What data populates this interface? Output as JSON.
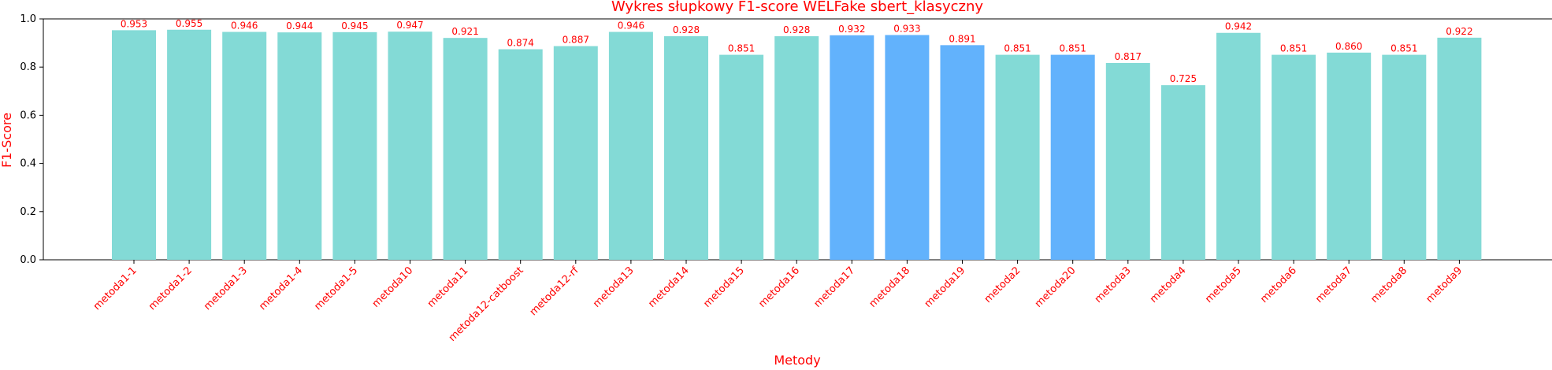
{
  "chart_data": {
    "type": "bar",
    "title": "Wykres słupkowy F1-score WELFake sbert_klasyczny",
    "xlabel": "Metody",
    "ylabel": "F1-Score",
    "ylim": [
      0,
      1.0
    ],
    "yticks": [
      "0.0",
      "0.2",
      "0.4",
      "0.6",
      "0.8",
      "1.0"
    ],
    "grid": false,
    "label_color": "#ff0000",
    "colors": {
      "default": "#83dad6",
      "highlight": "#62b2fc"
    },
    "categories": [
      "metoda1-1",
      "metoda1-2",
      "metoda1-3",
      "metoda1-4",
      "metoda1-5",
      "metoda10",
      "metoda11",
      "metoda12-catboost",
      "metoda12-rf",
      "metoda13",
      "metoda14",
      "metoda15",
      "metoda16",
      "metoda17",
      "metoda18",
      "metoda19",
      "metoda2",
      "metoda20",
      "metoda3",
      "metoda4",
      "metoda5",
      "metoda6",
      "metoda7",
      "metoda8",
      "metoda9"
    ],
    "values": [
      0.953,
      0.955,
      0.946,
      0.944,
      0.945,
      0.947,
      0.921,
      0.874,
      0.887,
      0.946,
      0.928,
      0.851,
      0.928,
      0.932,
      0.933,
      0.891,
      0.851,
      0.851,
      0.817,
      0.725,
      0.942,
      0.851,
      0.86,
      0.851,
      0.922
    ],
    "value_labels": [
      "0.953",
      "0.955",
      "0.946",
      "0.944",
      "0.945",
      "0.947",
      "0.921",
      "0.874",
      "0.887",
      "0.946",
      "0.928",
      "0.851",
      "0.928",
      "0.932",
      "0.933",
      "0.891",
      "0.851",
      "0.851",
      "0.817",
      "0.725",
      "0.942",
      "0.851",
      "0.860",
      "0.851",
      "0.922"
    ],
    "highlighted": [
      "metoda17",
      "metoda18",
      "metoda19",
      "metoda20"
    ]
  }
}
